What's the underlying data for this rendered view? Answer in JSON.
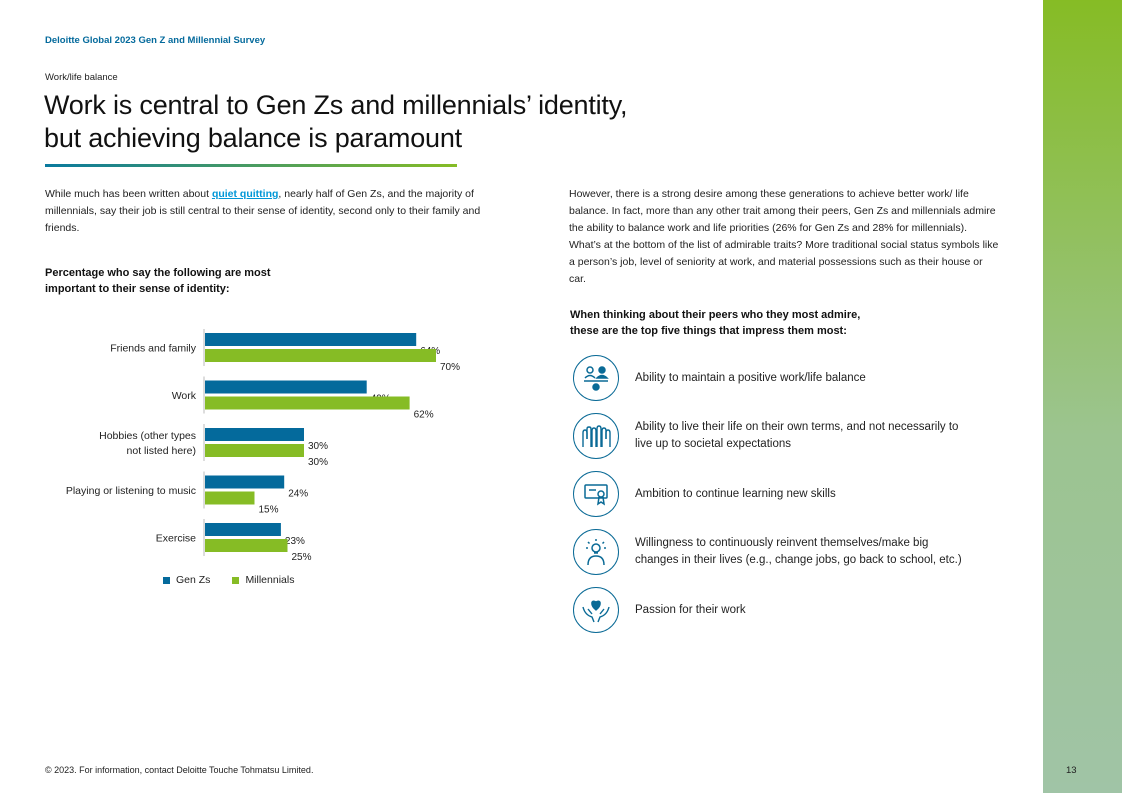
{
  "header": {
    "title": "Deloitte Global 2023 Gen Z and Millennial Survey"
  },
  "section": {
    "label": "Work/life balance"
  },
  "page": {
    "title_line1": "Work is central to Gen Zs and millennials’ identity,",
    "title_line2": "but achieving balance is paramount"
  },
  "intro": {
    "before_link": "While much has been written about ",
    "link_text": "quiet quitting",
    "after_link": ", nearly half of Gen Zs, and the majority of millennials, say their job is still central to their sense of identity, second only to their family and friends."
  },
  "right_paragraph": "However, there is a strong desire among these generations to achieve better work/ life balance. In fact, more than any other trait among their peers, Gen Zs and millennials admire the ability to balance work and life priorities (26% for Gen Zs and 28% for millennials). What’s at the bottom of the list of admirable traits? More traditional social status symbols like a person’s job, level of seniority at work, and material possessions such as their house or car.",
  "chart_heading": {
    "line1": "Percentage who say the following are most",
    "line2": "important to their sense of identity:"
  },
  "chart_data": {
    "type": "bar",
    "orientation": "horizontal",
    "categories": [
      "Friends and family",
      "Work",
      "Hobbies (other types not listed here)",
      "Playing or listening to music",
      "Exercise"
    ],
    "category_lines": [
      [
        "Friends and family"
      ],
      [
        "Work"
      ],
      [
        "Hobbies (other types",
        "not listed here)"
      ],
      [
        "Playing or listening to music"
      ],
      [
        "Exercise"
      ]
    ],
    "series": [
      {
        "name": "Gen Zs",
        "values": [
          64,
          49,
          30,
          24,
          23
        ],
        "color": "#046a9c"
      },
      {
        "name": "Millennials",
        "values": [
          70,
          62,
          30,
          15,
          25
        ],
        "color": "#86bc25"
      }
    ],
    "value_suffix": "%",
    "xlim": [
      0,
      100
    ],
    "legend": "bottom-left"
  },
  "traits": {
    "heading_line1": "When thinking about their peers who they most admire,",
    "heading_line2": "these are the top five things that impress them most:",
    "items": [
      {
        "icon": "people-balance-icon",
        "text": "Ability to maintain a positive work/life balance"
      },
      {
        "icon": "raised-hands-icon",
        "text": "Ability to live their life on their own terms, and not necessarily to live up to societal expectations"
      },
      {
        "icon": "certificate-icon",
        "text": "Ambition to continue learning new skills"
      },
      {
        "icon": "person-idea-icon",
        "text": "Willingness to continuously reinvent themselves/make big changes in their lives (e.g., change jobs, go back to school, etc.)"
      },
      {
        "icon": "heart-hands-icon",
        "text": "Passion for their work"
      }
    ]
  },
  "footer": {
    "copyright": "© 2023. For information, contact Deloitte Touche Tohmatsu Limited.",
    "page_number": "13"
  },
  "colors": {
    "brand_blue": "#046a9c",
    "brand_green": "#86bc25",
    "link": "#0097d7"
  }
}
